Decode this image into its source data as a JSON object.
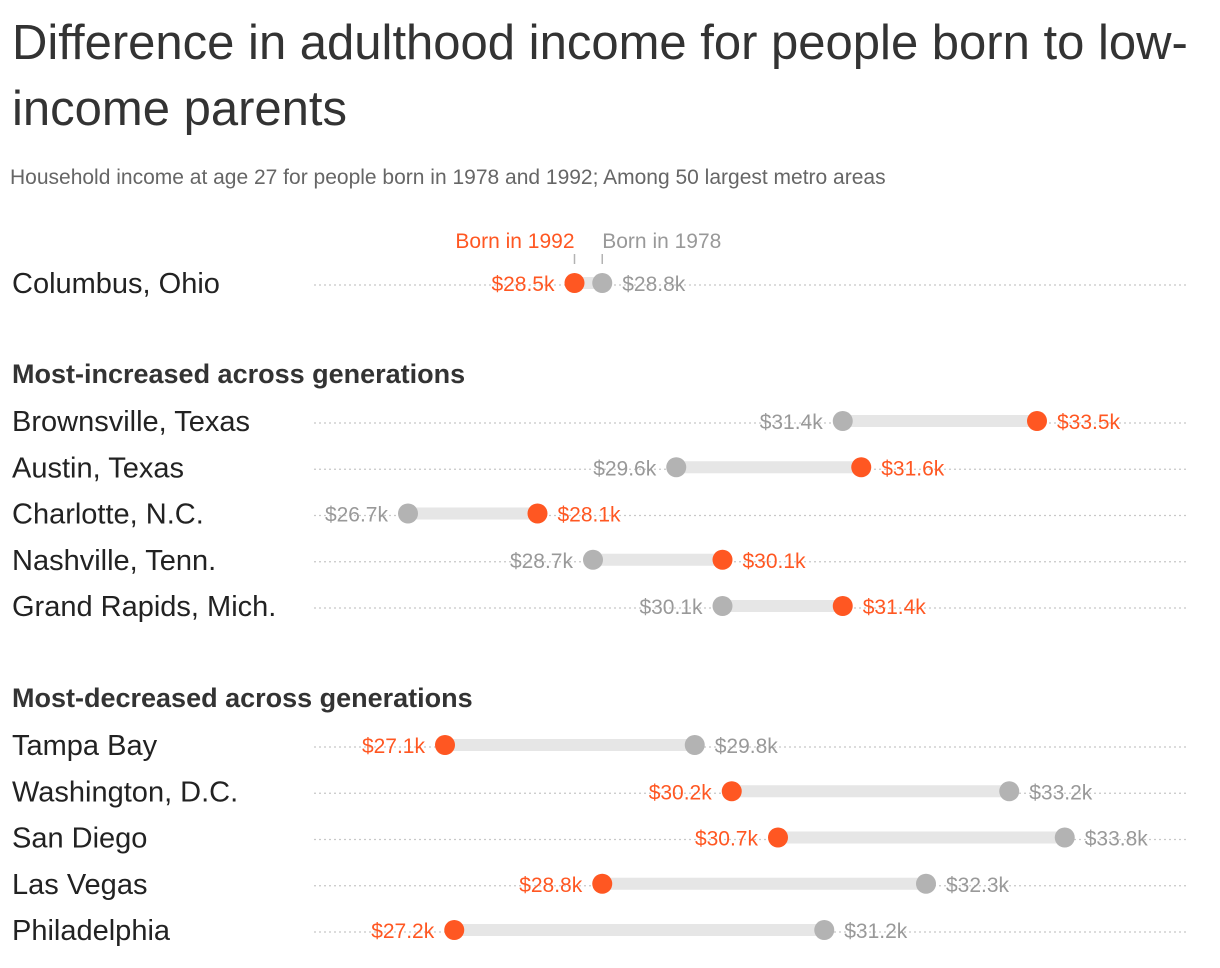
{
  "title": "Difference in adulthood income for people born to low-income parents",
  "subtitle": "Household income at age 27 for people born in 1978 and 1992; Among 50 largest metro areas",
  "colors": {
    "born_1992": "#ff5722",
    "born_1978": "#b3b3b3",
    "connector": "#e6e6e6",
    "gridline": "#c8c8c8",
    "label_1978": "#999999"
  },
  "chart_data": {
    "type": "dumbbell",
    "legend": {
      "born_1992": "Born in 1992",
      "born_1978": "Born in 1978"
    },
    "unit": "thousands of dollars",
    "featured": [
      {
        "name": "Columbus, Ohio",
        "born_1992": 28.5,
        "born_1978": 28.8,
        "label_1992": "$28.5k",
        "label_1978": "$28.8k"
      }
    ],
    "sections": [
      {
        "title": "Most-increased across generations",
        "rows": [
          {
            "name": "Brownsville, Texas",
            "born_1992": 33.5,
            "born_1978": 31.4,
            "label_1992": "$33.5k",
            "label_1978": "$31.4k"
          },
          {
            "name": "Austin, Texas",
            "born_1992": 31.6,
            "born_1978": 29.6,
            "label_1992": "$31.6k",
            "label_1978": "$29.6k"
          },
          {
            "name": "Charlotte, N.C.",
            "born_1992": 28.1,
            "born_1978": 26.7,
            "label_1992": "$28.1k",
            "label_1978": "$26.7k"
          },
          {
            "name": "Nashville, Tenn.",
            "born_1992": 30.1,
            "born_1978": 28.7,
            "label_1992": "$30.1k",
            "label_1978": "$28.7k"
          },
          {
            "name": "Grand Rapids, Mich.",
            "born_1992": 31.4,
            "born_1978": 30.1,
            "label_1992": "$31.4k",
            "label_1978": "$30.1k"
          }
        ]
      },
      {
        "title": "Most-decreased across generations",
        "rows": [
          {
            "name": "Tampa Bay",
            "born_1992": 27.1,
            "born_1978": 29.8,
            "label_1992": "$27.1k",
            "label_1978": "$29.8k"
          },
          {
            "name": "Washington, D.C.",
            "born_1992": 30.2,
            "born_1978": 33.2,
            "label_1992": "$30.2k",
            "label_1978": "$33.2k"
          },
          {
            "name": "San Diego",
            "born_1992": 30.7,
            "born_1978": 33.8,
            "label_1992": "$30.7k",
            "label_1978": "$33.8k"
          },
          {
            "name": "Las Vegas",
            "born_1992": 28.8,
            "born_1978": 32.3,
            "label_1992": "$28.8k",
            "label_1978": "$32.3k"
          },
          {
            "name": "Philadelphia",
            "born_1992": 27.2,
            "born_1978": 31.2,
            "label_1992": "$27.2k",
            "label_1978": "$31.2k"
          }
        ]
      }
    ]
  }
}
